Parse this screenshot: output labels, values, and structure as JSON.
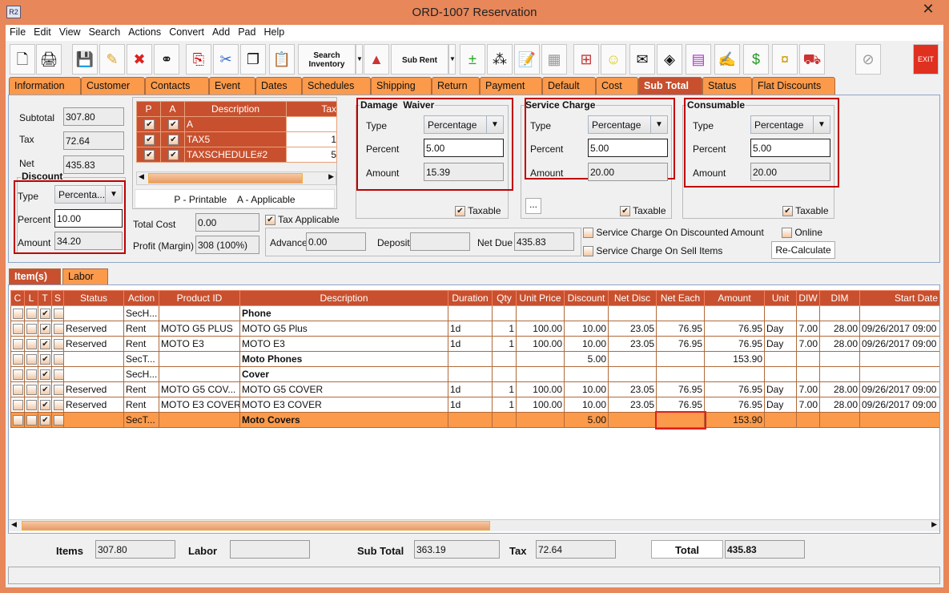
{
  "window": {
    "title": "ORD-1007 Reservation",
    "icon_text": "R2",
    "close": "✕"
  },
  "menu": [
    "File",
    "Edit",
    "View",
    "Search",
    "Actions",
    "Convert",
    "Add",
    "Pad",
    "Help"
  ],
  "toolbar": {
    "search_inventory": "Search Inventory",
    "sub_rent": "Sub Rent",
    "exit": "EXIT"
  },
  "tabs": [
    "Information",
    "Customer",
    "Contacts",
    "Event",
    "Dates",
    "Schedules",
    "Shipping",
    "Return",
    "Payment",
    "Default",
    "Cost",
    "Sub Total",
    "Status",
    "Flat Discounts"
  ],
  "active_tab": "Sub Total",
  "summary": {
    "subtotal_label": "Subtotal",
    "subtotal": "307.80",
    "tax_label": "Tax",
    "tax": "72.64",
    "net_label": "Net",
    "net": "435.83"
  },
  "discount": {
    "title": "Discount",
    "type_label": "Type",
    "type": "Percenta...",
    "percent_label": "Percent",
    "percent": "10.00",
    "amount_label": "Amount",
    "amount": "34.20"
  },
  "tax_table": {
    "headers": [
      "P",
      "A",
      "Description",
      "Tax"
    ],
    "rows": [
      {
        "desc": "A",
        "tax": ""
      },
      {
        "desc": "TAX5",
        "tax": "1"
      },
      {
        "desc": "TAXSCHEDULE#2",
        "tax": "5"
      }
    ],
    "legend": "P - Printable    A - Applicable"
  },
  "cost": {
    "total_cost_label": "Total Cost",
    "total_cost": "0.00",
    "profit_label": "Profit (Margin)",
    "profit": "308 (100%)",
    "tax_applicable": "Tax Applicable"
  },
  "payment": {
    "advance_label": "Advance",
    "advance": "0.00",
    "deposit_label": "Deposit",
    "deposit": "",
    "net_due_label": "Net Due",
    "net_due": "435.83"
  },
  "damage_waiver": {
    "title": "Damage  Waiver",
    "type_label": "Type",
    "type": "Percentage",
    "percent_label": "Percent",
    "percent": "5.00",
    "amount_label": "Amount",
    "amount": "15.39",
    "taxable": "Taxable"
  },
  "service_charge": {
    "title": "Service Charge",
    "type_label": "Type",
    "type": "Percentage",
    "percent_label": "Percent",
    "percent": "5.00",
    "amount_label": "Amount",
    "amount": "20.00",
    "taxable": "Taxable",
    "more": "..."
  },
  "consumable": {
    "title": "Consumable",
    "type_label": "Type",
    "type": "Percentage",
    "percent_label": "Percent",
    "percent": "5.00",
    "amount_label": "Amount",
    "amount": "20.00",
    "taxable": "Taxable"
  },
  "options": {
    "sc_discounted": "Service Charge On Discounted Amount",
    "sc_sell": "Service Charge On Sell Items",
    "online": "Online",
    "recalc": "Re-Calculate"
  },
  "item_tabs": [
    "Item(s)",
    "Labor"
  ],
  "items": {
    "headers": [
      "C",
      "L",
      "T",
      "S",
      "Status",
      "Action",
      "Product ID",
      "Description",
      "Duration",
      "Qty",
      "Unit Price",
      "Discount",
      "Net Disc",
      "Net Each",
      "Amount",
      "Unit",
      "DIW",
      "DIM",
      "Start Date"
    ],
    "rows": [
      [
        "",
        "",
        "✔",
        "",
        "",
        "SecH...",
        "",
        "Phone",
        "",
        "",
        "",
        "",
        "",
        "",
        "",
        "",
        "",
        "",
        ""
      ],
      [
        "",
        "",
        "✔",
        "",
        "Reserved",
        "Rent",
        "MOTO G5 PLUS",
        "MOTO G5 Plus",
        "1d",
        "1",
        "100.00",
        "10.00",
        "23.05",
        "76.95",
        "76.95",
        "Day",
        "7.00",
        "28.00",
        "09/26/2017 09:00"
      ],
      [
        "",
        "",
        "✔",
        "",
        "Reserved",
        "Rent",
        "MOTO E3",
        "MOTO E3",
        "1d",
        "1",
        "100.00",
        "10.00",
        "23.05",
        "76.95",
        "76.95",
        "Day",
        "7.00",
        "28.00",
        "09/26/2017 09:00"
      ],
      [
        "",
        "",
        "✔",
        "",
        "",
        "SecT...",
        "",
        "Moto Phones",
        "",
        "",
        "",
        "5.00",
        "",
        "",
        "153.90",
        "",
        "",
        "",
        ""
      ],
      [
        "",
        "",
        "✔",
        "",
        "",
        "SecH...",
        "",
        "Cover",
        "",
        "",
        "",
        "",
        "",
        "",
        "",
        "",
        "",
        "",
        ""
      ],
      [
        "",
        "",
        "✔",
        "",
        "Reserved",
        "Rent",
        "MOTO G5 COV...",
        "MOTO G5 COVER",
        "1d",
        "1",
        "100.00",
        "10.00",
        "23.05",
        "76.95",
        "76.95",
        "Day",
        "7.00",
        "28.00",
        "09/26/2017 09:00"
      ],
      [
        "",
        "",
        "✔",
        "",
        "Reserved",
        "Rent",
        "MOTO E3 COVER",
        "MOTO E3 COVER",
        "1d",
        "1",
        "100.00",
        "10.00",
        "23.05",
        "76.95",
        "76.95",
        "Day",
        "7.00",
        "28.00",
        "09/26/2017 09:00"
      ],
      [
        "",
        "",
        "✔",
        "",
        "",
        "SecT...",
        "",
        "Moto Covers",
        "",
        "",
        "",
        "5.00",
        "",
        "",
        "153.90",
        "",
        "",
        "",
        ""
      ]
    ]
  },
  "totals": {
    "items_label": "Items",
    "items": "307.80",
    "labor_label": "Labor",
    "labor": "",
    "subtotal_label": "Sub Total",
    "subtotal": "363.19",
    "tax_label": "Tax",
    "tax": "72.64",
    "total_label": "Total",
    "total": "435.83"
  },
  "colors": {
    "frame": "#e8875a",
    "tab": "#fb9a4b",
    "accent": "#c8502e",
    "highlight": "#c00000"
  }
}
